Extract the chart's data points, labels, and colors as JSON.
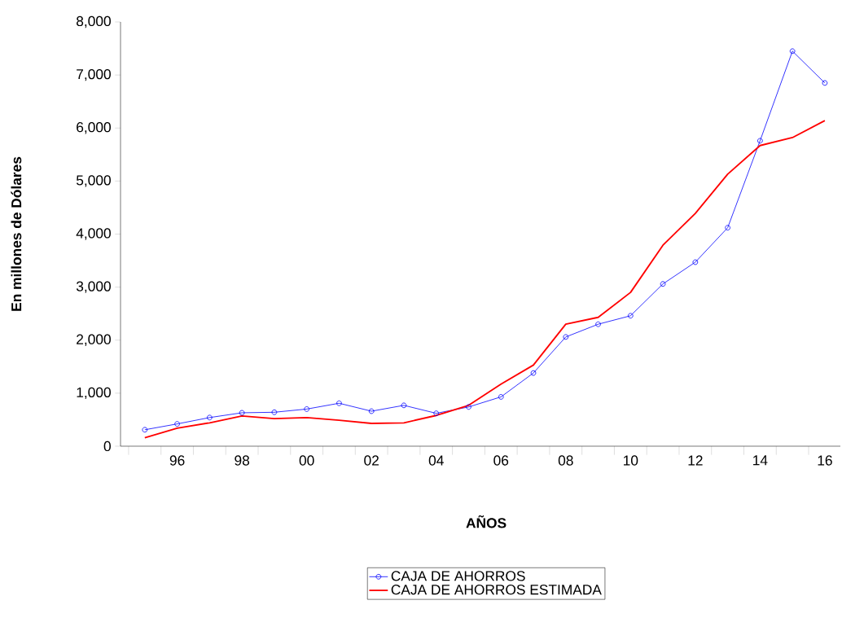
{
  "chart_data": {
    "type": "line",
    "xlabel": "AÑOS",
    "ylabel": "En millones de Dólares",
    "categories": [
      null,
      "96",
      null,
      "98",
      null,
      "00",
      null,
      "02",
      null,
      "04",
      null,
      "06",
      null,
      "08",
      null,
      "10",
      null,
      "12",
      null,
      "14",
      null,
      "16"
    ],
    "ylim": [
      0,
      8000
    ],
    "yticks": [
      0,
      {
        "value": 1000,
        "label": "1,000"
      },
      {
        "value": 2000,
        "label": "2,000"
      },
      {
        "value": 3000,
        "label": "3,000"
      },
      {
        "value": 4000,
        "label": "4,000"
      },
      {
        "value": 5000,
        "label": "5,000"
      },
      {
        "value": 6000,
        "label": "6,000"
      },
      {
        "value": 7000,
        "label": "7,000"
      },
      {
        "value": 8000,
        "label": "8,000"
      }
    ],
    "legend": "bottom",
    "series": [
      {
        "name": "CAJA DE AHORROS",
        "color": "#0000ff",
        "marker": "circle",
        "values": [
          310,
          420,
          540,
          630,
          640,
          700,
          810,
          660,
          770,
          620,
          740,
          930,
          1380,
          2060,
          2300,
          2460,
          3060,
          3470,
          4120,
          5760,
          7450,
          6850
        ]
      },
      {
        "name": "CAJA DE AHORROS ESTIMADA",
        "color": "#ff0000",
        "marker": "none",
        "values": [
          160,
          340,
          440,
          570,
          520,
          540,
          490,
          430,
          440,
          580,
          770,
          1170,
          1530,
          2300,
          2430,
          2900,
          3790,
          4390,
          5130,
          5670,
          5820,
          6140
        ]
      }
    ]
  }
}
